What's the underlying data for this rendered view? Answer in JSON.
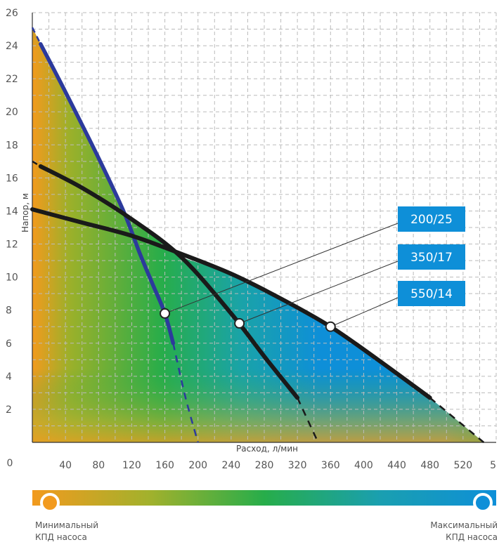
{
  "chart_data": {
    "type": "line",
    "xlabel": "Расход, л/мин",
    "ylabel": "Напор, м",
    "xlim": [
      0,
      560
    ],
    "ylim": [
      0,
      26
    ],
    "x_ticks": [
      "0",
      "40",
      "80",
      "120",
      "160",
      "200",
      "240",
      "280",
      "320",
      "360",
      "400",
      "440",
      "480",
      "520",
      "5"
    ],
    "y_ticks": [
      "2",
      "4",
      "6",
      "8",
      "10",
      "12",
      "14",
      "16",
      "18",
      "20",
      "22",
      "24",
      "26"
    ],
    "grid": true,
    "series": [
      {
        "name": "200/25",
        "color": "#2c3a9c",
        "x": [
          10,
          40,
          80,
          110,
          130,
          145,
          160,
          170,
          185,
          200
        ],
        "y": [
          24.1,
          21.2,
          17.2,
          14.0,
          11.4,
          9.6,
          7.8,
          6.0,
          2.7,
          0
        ],
        "marker": {
          "x": 160,
          "y": 7.8
        }
      },
      {
        "name": "350/17",
        "color": "#1a1a1a",
        "x": [
          10,
          60,
          120,
          180,
          240,
          280,
          320,
          345
        ],
        "y": [
          16.7,
          15.4,
          13.5,
          11.2,
          7.8,
          5.2,
          2.7,
          0
        ],
        "marker": {
          "x": 250,
          "y": 7.2
        }
      },
      {
        "name": "550/14",
        "color": "#1a1a1a",
        "x": [
          0,
          60,
          120,
          180,
          240,
          300,
          360,
          420,
          480,
          545
        ],
        "y": [
          14.1,
          13.3,
          12.5,
          11.4,
          10.2,
          8.7,
          7.0,
          4.9,
          2.7,
          0
        ],
        "marker": {
          "x": 360,
          "y": 7.0
        }
      }
    ],
    "legend": {
      "min_label_line1": "Минимальный",
      "min_label_line2": "КПД насоса",
      "max_label_line1": "Максимальный",
      "max_label_line2": "КПД насоса"
    },
    "colors": {
      "min": "#f29a1e",
      "mid": "#27ad4a",
      "max": "#0e8fd8",
      "badge": "#0e8fd8"
    }
  }
}
